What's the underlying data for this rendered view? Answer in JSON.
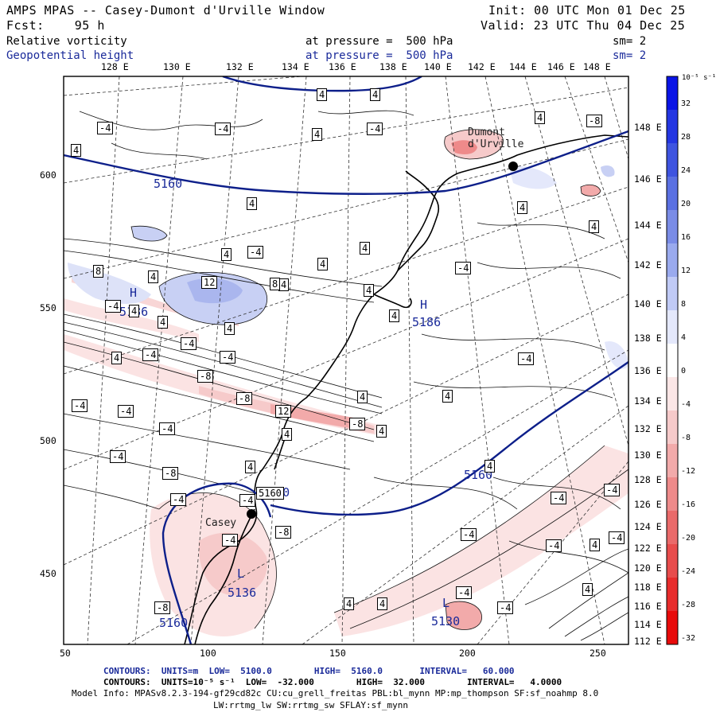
{
  "header": {
    "line1_left": "AMPS MPAS -- Casey-Dumont d'Urville Window",
    "line1_right": "Init: 00 UTC Mon 01 Dec 25",
    "line2_left": "Fcst:    95 h",
    "line2_right": "Valid: 23 UTC Thu 04 Dec 25",
    "field1_name": "Relative vorticity",
    "field1_level": "at pressure =  500 hPa",
    "field1_sm": "sm= 2",
    "field2_name": "Geopotential height",
    "field2_level": "at pressure =  500 hPa",
    "field2_sm": "sm= 2"
  },
  "top_lon_labels": [
    "128 E",
    "130 E",
    "132 E",
    "134 E",
    "136 E",
    "138 E",
    "140 E",
    "142 E",
    "144 E",
    "146 E",
    "148 E"
  ],
  "right_lon_labels": [
    "148 E",
    "146 E",
    "144 E",
    "142 E",
    "140 E",
    "138 E",
    "136 E",
    "134 E",
    "132 E",
    "130 E",
    "128 E",
    "126 E",
    "124 E",
    "122 E",
    "120 E",
    "118 E",
    "116 E",
    "114 E",
    "112 E"
  ],
  "x_ticks": [
    "50",
    "100",
    "150",
    "200",
    "250"
  ],
  "y_ticks": [
    "600",
    "550",
    "500",
    "450"
  ],
  "colorbar": {
    "unit": "10⁻⁵ s⁻¹",
    "labels": [
      "32",
      "28",
      "24",
      "20",
      "16",
      "12",
      "8",
      "4",
      "0",
      "-4",
      "-8",
      "-12",
      "-16",
      "-20",
      "-24",
      "-28",
      "-32"
    ],
    "colors": [
      "#0a14e6",
      "#2436e2",
      "#3e54e0",
      "#5a70e2",
      "#7a8ce6",
      "#9aaaee",
      "#c0caf6",
      "#e4e8fb",
      "#ffffff",
      "#fbe6e6",
      "#f6caca",
      "#f2aaaa",
      "#ee8a8a",
      "#ea6a6a",
      "#e84c4c",
      "#e82c2c",
      "#e80a0a"
    ]
  },
  "places": {
    "dumont": "Dumont\nd'Urville",
    "casey": "Casey"
  },
  "height_labels": [
    "5160",
    "5160",
    "5160",
    "5186",
    "5186",
    "5136",
    "5130",
    "5160"
  ],
  "pressure_centers": [
    "H",
    "H",
    "L",
    "L"
  ],
  "vorticity_labels": [
    "4",
    "4",
    "4",
    "-8",
    "-4",
    "-4",
    "4",
    "-4",
    "4",
    "4",
    "4",
    "4",
    "4",
    "-4",
    "4",
    "4",
    "4",
    "8",
    "4",
    "-4",
    "-4",
    "4",
    "4",
    "4",
    "12",
    "8",
    "4",
    "-4",
    "4",
    "-4",
    "-4",
    "4",
    "-4",
    "-8",
    "-8",
    "4",
    "4",
    "-4",
    "-4",
    "12",
    "-8",
    "4",
    "4",
    "-4",
    "-4",
    "4",
    "-8",
    "4",
    "5160",
    "-4",
    "-4",
    "-4",
    "-8",
    "-4",
    "-4",
    "4",
    "-4",
    "-4",
    "4",
    "4",
    "4",
    "-4",
    "-8",
    "-4",
    "-4"
  ],
  "footer": {
    "line1": "CONTOURS:  UNITS=m  LOW=  5100.0        HIGH=  5160.0       INTERVAL=   60.000",
    "line2": "CONTOURS:  UNITS=10⁻⁵ s⁻¹  LOW=  -32.000        HIGH=  32.000        INTERVAL=   4.0000",
    "line3": "Model Info: MPASv8.2.3-194-gf29cd82c CU:cu_grell_freitas PBL:bl_mynn MP:mp_thompson SF:sf_noahmp 8.0",
    "line4": "LW:rrtmg_lw SW:rrtmg_sw SFLAY:sf_mynn"
  }
}
